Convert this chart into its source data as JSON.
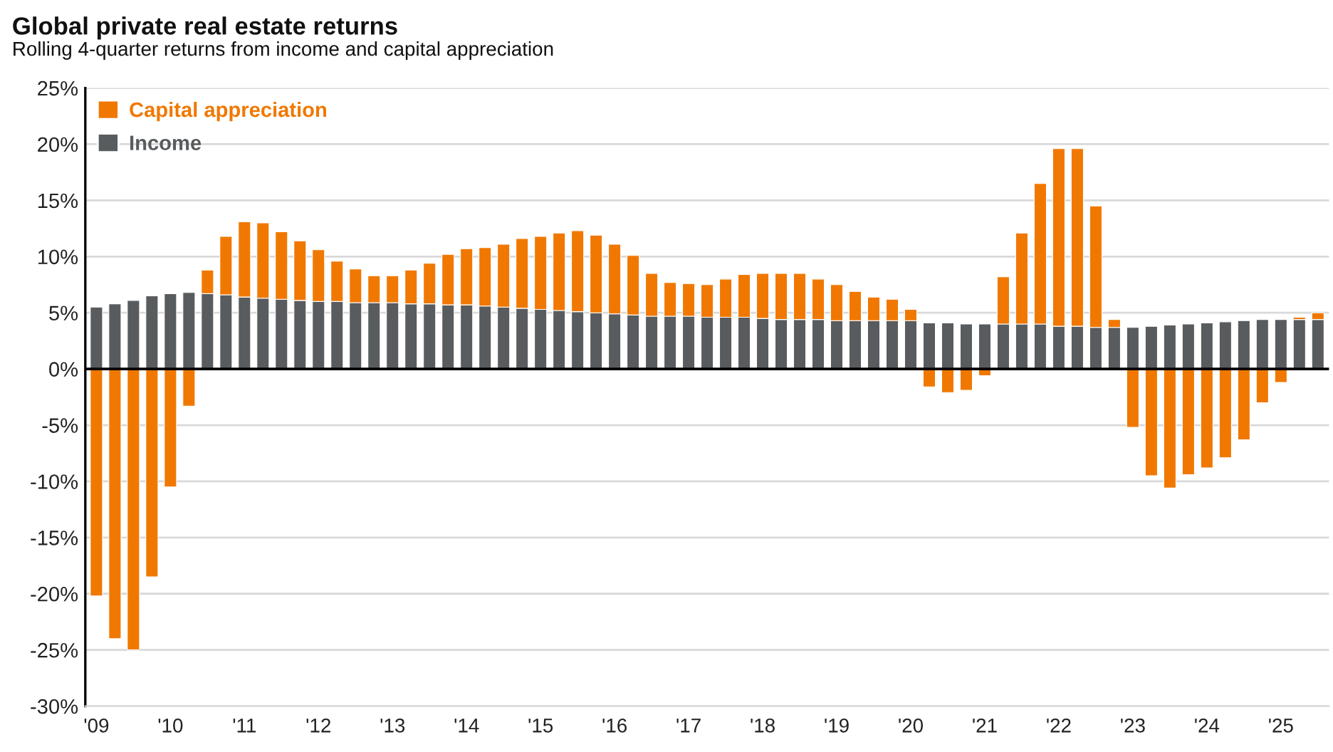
{
  "chart_data": {
    "type": "bar",
    "title": "Global private real estate returns",
    "subtitle": "Rolling 4-quarter returns from income and capital appreciation",
    "categories": [
      "'09",
      null,
      null,
      null,
      "'10",
      null,
      null,
      null,
      "'11",
      null,
      null,
      null,
      "'12",
      null,
      null,
      null,
      "'13",
      null,
      null,
      null,
      "'14",
      null,
      null,
      null,
      "'15",
      null,
      null,
      null,
      "'16",
      null,
      null,
      null,
      "'17",
      null,
      null,
      null,
      "'18",
      null,
      null,
      null,
      "'19",
      null,
      null,
      null,
      "'20",
      null,
      null,
      null,
      "'21",
      null,
      null,
      null,
      "'22",
      null,
      null,
      null,
      "'23",
      null,
      null,
      null,
      "'24",
      null,
      null,
      null,
      "'25",
      null,
      null
    ],
    "stacked": true,
    "series": [
      {
        "name": "Income",
        "color": "#595c5e",
        "values": [
          5.5,
          5.8,
          6.1,
          6.5,
          6.7,
          6.8,
          6.7,
          6.6,
          6.4,
          6.3,
          6.2,
          6.1,
          6.0,
          6.0,
          5.9,
          5.9,
          5.9,
          5.8,
          5.8,
          5.7,
          5.7,
          5.6,
          5.5,
          5.4,
          5.3,
          5.2,
          5.1,
          5.0,
          4.9,
          4.8,
          4.7,
          4.7,
          4.7,
          4.6,
          4.6,
          4.6,
          4.5,
          4.4,
          4.4,
          4.4,
          4.3,
          4.3,
          4.3,
          4.3,
          4.3,
          4.1,
          4.1,
          4.0,
          4.0,
          4.0,
          4.0,
          4.0,
          3.8,
          3.8,
          3.7,
          3.7,
          3.7,
          3.8,
          3.9,
          4.0,
          4.1,
          4.2,
          4.3,
          4.4,
          4.4,
          4.4,
          4.4
        ]
      },
      {
        "name": "Capital appreciation",
        "color": "#f07800",
        "values": [
          -20.2,
          -24.0,
          -25.0,
          -18.5,
          -10.5,
          -3.3,
          2.1,
          5.2,
          6.7,
          6.7,
          6.0,
          5.3,
          4.6,
          3.6,
          3.0,
          2.4,
          2.4,
          3.0,
          3.6,
          4.5,
          5.0,
          5.2,
          5.6,
          6.2,
          6.5,
          6.9,
          7.2,
          6.9,
          6.2,
          5.3,
          3.8,
          3.0,
          2.9,
          2.9,
          3.4,
          3.8,
          4.0,
          4.1,
          4.1,
          3.6,
          3.2,
          2.6,
          2.1,
          1.9,
          1.0,
          -1.6,
          -2.1,
          -1.9,
          -0.6,
          4.2,
          8.1,
          12.5,
          15.8,
          15.8,
          10.8,
          0.7,
          -5.2,
          -9.5,
          -10.6,
          -9.4,
          -8.8,
          -7.9,
          -6.3,
          -3.0,
          -1.2,
          0.2,
          0.6
        ]
      }
    ],
    "ylim": [
      -30,
      25
    ],
    "yticks": [
      {
        "value": -30,
        "label": "-30%"
      },
      {
        "value": -25,
        "label": "-25%"
      },
      {
        "value": -20,
        "label": "-20%"
      },
      {
        "value": -15,
        "label": "-15%"
      },
      {
        "value": -10,
        "label": "-10%"
      },
      {
        "value": -5,
        "label": "-5%"
      },
      {
        "value": 0,
        "label": "0%"
      },
      {
        "value": 5,
        "label": "5%"
      },
      {
        "value": 10,
        "label": "10%"
      },
      {
        "value": 15,
        "label": "15%"
      },
      {
        "value": 20,
        "label": "20%"
      },
      {
        "value": 25,
        "label": "25%"
      }
    ],
    "ref_lines": [
      {
        "axis": "y",
        "value": 0,
        "color": "#000000"
      }
    ],
    "grid": "y",
    "legend": "top left"
  }
}
